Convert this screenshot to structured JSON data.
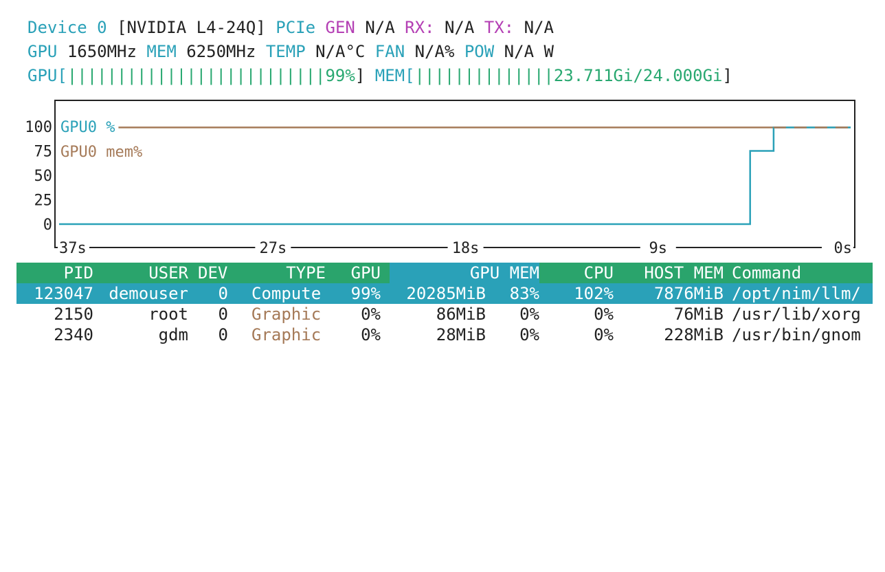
{
  "header": {
    "device_label": "Device",
    "device_index": "0",
    "device_name": "[NVIDIA L4-24Q]",
    "pcie_label": "PCIe",
    "gen_label": "GEN",
    "gen_value": "N/A",
    "rx_label": "RX:",
    "rx_value": "N/A",
    "tx_label": "TX:",
    "tx_value": "N/A",
    "gpu_label": "GPU",
    "gpu_clock": "1650MHz",
    "mem_label": "MEM",
    "mem_clock": "6250MHz",
    "temp_label": "TEMP",
    "temp_value": "N/A°C",
    "fan_label": "FAN",
    "fan_value": "N/A%",
    "pow_label": "POW",
    "pow_value": "N/A W",
    "gpu_bar_label": "GPU[",
    "gpu_bar": "||||||||||||||||||||||||||",
    "gpu_bar_value": "99%",
    "gpu_bar_close": "]",
    "mem_bar_label": "MEM[",
    "mem_bar": "||||||||||||||",
    "mem_bar_value": "23.711Gi/24.000Gi",
    "mem_bar_close": "]",
    "gpu_util_fraction": 0.99,
    "mem_used_fraction": 0.988
  },
  "chart_data": {
    "type": "line",
    "title": "",
    "xlabel": "",
    "ylabel": "",
    "y_ticks": [
      "100",
      "75",
      "50",
      "25",
      "0"
    ],
    "ylim": [
      0,
      100
    ],
    "x_ticks": [
      "37s",
      "27s",
      "18s",
      "9s",
      "0s"
    ],
    "xlim": [
      37,
      0
    ],
    "legend_position": "top-left",
    "series": [
      {
        "name": "GPU0 %",
        "color": "#2aa1b8",
        "x": [
          37,
          4.7,
          4.7,
          3.6,
          3.6,
          0
        ],
        "y": [
          0,
          0,
          75,
          75,
          99,
          99
        ]
      },
      {
        "name": "GPU0 mem%",
        "color": "#a57a58",
        "x": [
          37,
          0
        ],
        "y": [
          99,
          99
        ]
      }
    ]
  },
  "table": {
    "headers": {
      "pid": "PID",
      "user": "USER",
      "dev": "DEV",
      "type": "TYPE",
      "gpu": "GPU",
      "gpu_mem": "GPU MEM",
      "cpu": "CPU",
      "host_mem": "HOST MEM",
      "command": "Command"
    },
    "rows": [
      {
        "pid": "123047",
        "user": "demouser",
        "dev": "0",
        "type": "Compute",
        "gpu": "99%",
        "gpu_mem": "20285MiB",
        "gpu_mem_pct": "83%",
        "cpu": "102%",
        "host_mem": "7876MiB",
        "command": "/opt/nim/llm/"
      },
      {
        "pid": "2150",
        "user": "root",
        "dev": "0",
        "type": "Graphic",
        "gpu": "0%",
        "gpu_mem": "86MiB",
        "gpu_mem_pct": "0%",
        "cpu": "0%",
        "host_mem": "76MiB",
        "command": "/usr/lib/xorg"
      },
      {
        "pid": "2340",
        "user": "gdm",
        "dev": "0",
        "type": "Graphic",
        "gpu": "0%",
        "gpu_mem": "28MiB",
        "gpu_mem_pct": "0%",
        "cpu": "0%",
        "host_mem": "228MiB",
        "command": "/usr/bin/gnom"
      }
    ]
  }
}
